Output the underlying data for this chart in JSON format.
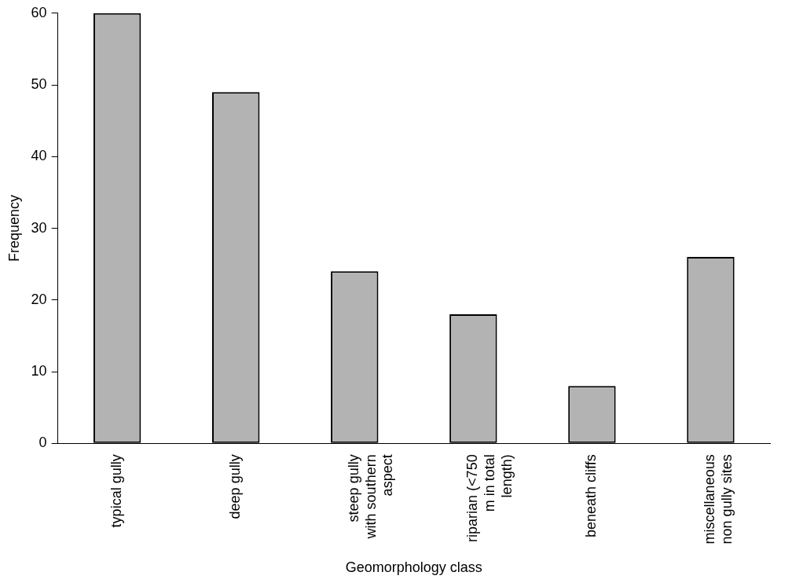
{
  "chart_data": {
    "type": "bar",
    "xlabel": "Geomorphology class",
    "ylabel": "Frequency",
    "categories": [
      "typical gully",
      "deep gully",
      "steep gully with southern aspect",
      "riparian (<750 m in total length)",
      "beneath cliffs",
      "miscellaneous non gully sites"
    ],
    "values": [
      60,
      49,
      24,
      18,
      8,
      26
    ],
    "color": "#b3b3b3",
    "ylim": [
      0,
      60
    ],
    "yticks": [
      0,
      10,
      20,
      30,
      40,
      50,
      60
    ],
    "grid": false,
    "legend": false
  }
}
